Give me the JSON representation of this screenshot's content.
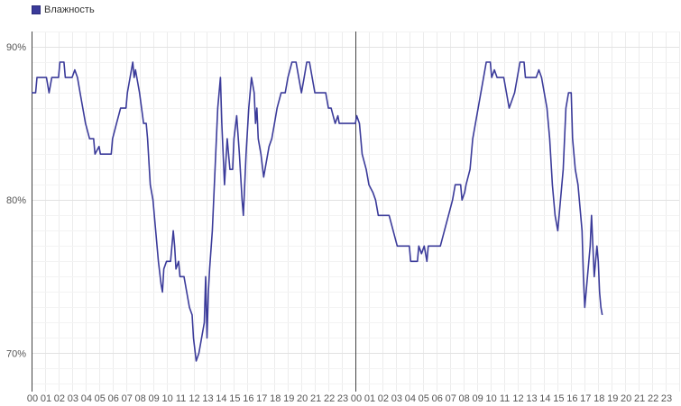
{
  "legend": {
    "label": "Влажность",
    "color": "#3b3b9a"
  },
  "chart_data": {
    "type": "line",
    "title": "",
    "xlabel": "",
    "ylabel": "",
    "ylim": [
      67.5,
      91.0
    ],
    "xlim": [
      0,
      48
    ],
    "day_boundary_hour": 24,
    "grid": true,
    "legend_position": "top-left",
    "y_ticks": [
      {
        "value": 70,
        "label": "70%"
      },
      {
        "value": 80,
        "label": "80%"
      },
      {
        "value": 90,
        "label": "90%"
      }
    ],
    "x_tick_labels": [
      "00",
      "01",
      "02",
      "03",
      "04",
      "05",
      "06",
      "07",
      "08",
      "09",
      "10",
      "11",
      "12",
      "13",
      "14",
      "15",
      "16",
      "17",
      "18",
      "19",
      "20",
      "21",
      "22",
      "23",
      "00",
      "01",
      "02",
      "03",
      "04",
      "05",
      "06",
      "07",
      "08",
      "09",
      "10",
      "11",
      "12",
      "13",
      "14",
      "15",
      "16",
      "17",
      "18",
      "19",
      "20",
      "21",
      "22",
      "23"
    ],
    "series": [
      {
        "name": "Влажность",
        "color": "#3b3b9a",
        "points": [
          [
            0.0,
            87
          ],
          [
            0.3,
            87
          ],
          [
            0.4,
            88
          ],
          [
            1.1,
            88
          ],
          [
            1.3,
            87
          ],
          [
            1.5,
            88
          ],
          [
            2.0,
            88
          ],
          [
            2.1,
            89
          ],
          [
            2.4,
            89
          ],
          [
            2.5,
            88
          ],
          [
            3.0,
            88
          ],
          [
            3.2,
            88.5
          ],
          [
            3.4,
            88
          ],
          [
            3.6,
            87
          ],
          [
            3.8,
            86
          ],
          [
            4.0,
            85
          ],
          [
            4.3,
            84
          ],
          [
            4.6,
            84
          ],
          [
            4.7,
            83
          ],
          [
            5.0,
            83.5
          ],
          [
            5.1,
            83
          ],
          [
            5.9,
            83
          ],
          [
            6.0,
            84
          ],
          [
            6.3,
            85
          ],
          [
            6.6,
            86
          ],
          [
            7.0,
            86
          ],
          [
            7.1,
            87
          ],
          [
            7.3,
            88
          ],
          [
            7.5,
            89
          ],
          [
            7.6,
            88
          ],
          [
            7.7,
            88.5
          ],
          [
            7.8,
            88
          ],
          [
            8.0,
            87
          ],
          [
            8.3,
            85
          ],
          [
            8.5,
            85
          ],
          [
            8.6,
            84
          ],
          [
            8.8,
            81
          ],
          [
            9.0,
            80
          ],
          [
            9.2,
            78
          ],
          [
            9.4,
            76
          ],
          [
            9.6,
            74.5
          ],
          [
            9.7,
            74
          ],
          [
            9.8,
            75.5
          ],
          [
            10.0,
            76
          ],
          [
            10.3,
            76
          ],
          [
            10.5,
            78
          ],
          [
            10.6,
            77
          ],
          [
            10.7,
            75.5
          ],
          [
            10.9,
            76
          ],
          [
            11.0,
            75
          ],
          [
            11.3,
            75
          ],
          [
            11.5,
            74
          ],
          [
            11.7,
            73
          ],
          [
            11.9,
            72.5
          ],
          [
            12.0,
            71
          ],
          [
            12.2,
            69.5
          ],
          [
            12.4,
            70
          ],
          [
            12.6,
            71
          ],
          [
            12.8,
            72
          ],
          [
            12.9,
            75
          ],
          [
            13.0,
            71
          ],
          [
            13.1,
            74
          ],
          [
            13.2,
            75.5
          ],
          [
            13.4,
            78
          ],
          [
            13.6,
            82
          ],
          [
            13.8,
            86
          ],
          [
            14.0,
            88
          ],
          [
            14.1,
            85
          ],
          [
            14.3,
            81
          ],
          [
            14.5,
            84
          ],
          [
            14.7,
            82
          ],
          [
            14.9,
            82
          ],
          [
            15.0,
            84
          ],
          [
            15.2,
            85.5
          ],
          [
            15.4,
            83
          ],
          [
            15.6,
            80
          ],
          [
            15.7,
            79
          ],
          [
            15.9,
            83
          ],
          [
            16.1,
            86
          ],
          [
            16.3,
            88
          ],
          [
            16.5,
            87
          ],
          [
            16.6,
            85
          ],
          [
            16.7,
            86
          ],
          [
            16.8,
            84
          ],
          [
            17.0,
            83
          ],
          [
            17.2,
            81.5
          ],
          [
            17.4,
            82.5
          ],
          [
            17.6,
            83.5
          ],
          [
            17.8,
            84
          ],
          [
            18.0,
            85
          ],
          [
            18.2,
            86
          ],
          [
            18.5,
            87
          ],
          [
            18.8,
            87
          ],
          [
            19.0,
            88
          ],
          [
            19.3,
            89
          ],
          [
            19.6,
            89
          ],
          [
            19.8,
            88
          ],
          [
            20.0,
            87
          ],
          [
            20.2,
            88
          ],
          [
            20.4,
            89
          ],
          [
            20.6,
            89
          ],
          [
            20.8,
            88
          ],
          [
            21.0,
            87
          ],
          [
            21.8,
            87
          ],
          [
            22.0,
            86
          ],
          [
            22.2,
            86
          ],
          [
            22.5,
            85
          ],
          [
            22.7,
            85.5
          ],
          [
            22.8,
            85
          ],
          [
            24.0,
            85
          ],
          [
            24.1,
            85.5
          ],
          [
            24.3,
            85
          ],
          [
            24.5,
            83
          ],
          [
            24.8,
            82
          ],
          [
            25.0,
            81
          ],
          [
            25.3,
            80.5
          ],
          [
            25.5,
            80
          ],
          [
            25.7,
            79
          ],
          [
            26.5,
            79
          ],
          [
            26.8,
            78
          ],
          [
            27.1,
            77
          ],
          [
            28.0,
            77
          ],
          [
            28.1,
            76
          ],
          [
            28.6,
            76
          ],
          [
            28.7,
            77
          ],
          [
            28.9,
            76.5
          ],
          [
            29.1,
            77
          ],
          [
            29.3,
            76
          ],
          [
            29.4,
            77
          ],
          [
            30.3,
            77
          ],
          [
            30.6,
            78
          ],
          [
            30.9,
            79
          ],
          [
            31.2,
            80
          ],
          [
            31.4,
            81
          ],
          [
            31.8,
            81
          ],
          [
            31.9,
            80
          ],
          [
            32.1,
            80.5
          ],
          [
            32.2,
            81
          ],
          [
            32.5,
            82
          ],
          [
            32.7,
            84
          ],
          [
            32.9,
            85
          ],
          [
            33.1,
            86
          ],
          [
            33.3,
            87
          ],
          [
            33.5,
            88
          ],
          [
            33.7,
            89
          ],
          [
            34.0,
            89
          ],
          [
            34.1,
            88
          ],
          [
            34.3,
            88.5
          ],
          [
            34.5,
            88
          ],
          [
            35.0,
            88
          ],
          [
            35.2,
            87
          ],
          [
            35.4,
            86
          ],
          [
            35.6,
            86.5
          ],
          [
            35.8,
            87
          ],
          [
            36.0,
            88
          ],
          [
            36.2,
            89
          ],
          [
            36.5,
            89
          ],
          [
            36.6,
            88
          ],
          [
            37.4,
            88
          ],
          [
            37.6,
            88.5
          ],
          [
            37.8,
            88
          ],
          [
            38.0,
            87
          ],
          [
            38.2,
            86
          ],
          [
            38.4,
            84
          ],
          [
            38.6,
            81
          ],
          [
            38.8,
            79
          ],
          [
            39.0,
            78
          ],
          [
            39.2,
            80
          ],
          [
            39.4,
            82
          ],
          [
            39.6,
            86
          ],
          [
            39.8,
            87
          ],
          [
            40.0,
            87
          ],
          [
            40.1,
            84
          ],
          [
            40.3,
            82
          ],
          [
            40.5,
            81
          ],
          [
            40.6,
            80
          ],
          [
            40.8,
            78
          ],
          [
            40.9,
            75
          ],
          [
            41.0,
            73
          ],
          [
            41.2,
            75
          ],
          [
            41.4,
            77
          ],
          [
            41.5,
            79
          ],
          [
            41.7,
            75
          ],
          [
            41.9,
            77
          ],
          [
            42.0,
            76
          ],
          [
            42.1,
            74
          ],
          [
            42.2,
            73
          ],
          [
            42.3,
            72.5
          ]
        ]
      }
    ]
  }
}
